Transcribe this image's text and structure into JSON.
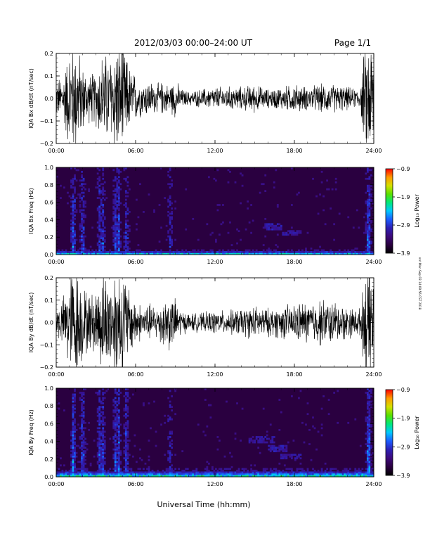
{
  "header": {
    "title": "2012/03/03  00:00–24:00 UT",
    "page": "Page 1/1"
  },
  "footer": {
    "xlabel": "Universal Time (hh:mm)",
    "stamp": "mrl Mon Sep 03 14:09:56 CST 2018"
  },
  "colors": {
    "background": "#ffffff",
    "trace": "#000000",
    "colormap": [
      "#000000",
      "#2a0040",
      "#3d0a7a",
      "#2d1fb4",
      "#1b5cff",
      "#00c8ff",
      "#00e87a",
      "#59e000",
      "#d4e000",
      "#ff9a00",
      "#ff0000"
    ]
  },
  "chart_data": [
    {
      "type": "line",
      "ylabel": "IQA Bx dB/dt (nT/sec)",
      "xlim": [
        0,
        24
      ],
      "ylim": [
        -0.2,
        0.2
      ],
      "yticks": [
        "0.2",
        "0.1",
        "0.0",
        "−0.1",
        "−0.2"
      ],
      "xticks": [
        "00:00",
        "06:00",
        "12:00",
        "18:00",
        "24:00"
      ],
      "series": [
        {
          "envelope_time_h": [
            0,
            0.5,
            1,
            1.5,
            2,
            2.5,
            3,
            3.5,
            4,
            4.5,
            5,
            5.5,
            6,
            6.5,
            7,
            7.5,
            8,
            8.5,
            9,
            9.5,
            10,
            11,
            12,
            13,
            14,
            15,
            16,
            17,
            18,
            19,
            20,
            21,
            22,
            22.5,
            23,
            23.3,
            23.6,
            24
          ],
          "envelope_amplitude": [
            0.08,
            0.1,
            0.22,
            0.25,
            0.14,
            0.1,
            0.12,
            0.2,
            0.18,
            0.25,
            0.25,
            0.14,
            0.1,
            0.07,
            0.08,
            0.06,
            0.07,
            0.06,
            0.08,
            0.04,
            0.03,
            0.04,
            0.05,
            0.05,
            0.05,
            0.06,
            0.04,
            0.05,
            0.06,
            0.05,
            0.06,
            0.06,
            0.05,
            0.04,
            0.05,
            0.22,
            0.25,
            0.25
          ]
        }
      ]
    },
    {
      "type": "heatmap",
      "ylabel": "IQA Bx Freq (Hz)",
      "xlim": [
        0,
        24
      ],
      "ylim": [
        0,
        1.0
      ],
      "yticks": [
        "1.0",
        "0.8",
        "0.6",
        "0.4",
        "0.2",
        "0.0"
      ],
      "xticks": [
        "00:00",
        "06:00",
        "12:00",
        "18:00",
        "24:00"
      ],
      "colorbar": {
        "label": "Log₁₀ Power",
        "ticks": [
          "−0.9",
          "−1.9",
          "−2.9",
          "−3.9"
        ],
        "range": [
          -3.9,
          -0.9
        ]
      },
      "background_level": -3.5,
      "columns": [
        {
          "time_h": 1.3,
          "level": -2.5
        },
        {
          "time_h": 2.0,
          "level": -2.6
        },
        {
          "time_h": 3.3,
          "level": -2.7
        },
        {
          "time_h": 3.5,
          "level": -2.7
        },
        {
          "time_h": 4.5,
          "level": -2.6
        },
        {
          "time_h": 4.7,
          "level": -2.6
        },
        {
          "time_h": 5.3,
          "level": -2.8
        },
        {
          "time_h": 8.6,
          "level": -3.0
        },
        {
          "time_h": 23.6,
          "level": -2.4
        }
      ],
      "features": [
        {
          "time_range_h": [
            15.8,
            17.0
          ],
          "freq_range_hz": [
            0.28,
            0.36
          ],
          "level": -2.8
        },
        {
          "time_range_h": [
            17.0,
            18.5
          ],
          "freq_range_hz": [
            0.22,
            0.28
          ],
          "level": -2.9
        },
        {
          "time_range_h": [
            0.0,
            24.0
          ],
          "freq_range_hz": [
            0.0,
            0.06
          ],
          "level": -2.0
        }
      ]
    },
    {
      "type": "line",
      "ylabel": "IQA By dB/dt (nT/sec)",
      "xlim": [
        0,
        24
      ],
      "ylim": [
        -0.2,
        0.2
      ],
      "yticks": [
        "0.2",
        "0.1",
        "0.0",
        "−0.1",
        "−0.2"
      ],
      "xticks": [
        "00:00",
        "06:00",
        "12:00",
        "18:00",
        "24:00"
      ],
      "series": [
        {
          "envelope_time_h": [
            0,
            0.5,
            1,
            1.5,
            2,
            2.5,
            3,
            3.5,
            4,
            4.5,
            5,
            5.5,
            6,
            6.5,
            7,
            7.5,
            8,
            8.5,
            9,
            9.5,
            10,
            11,
            12,
            13,
            14,
            15,
            16,
            17,
            18,
            19,
            20,
            21,
            22,
            22.5,
            23,
            23.3,
            23.6,
            24
          ],
          "envelope_amplitude": [
            0.07,
            0.1,
            0.22,
            0.25,
            0.16,
            0.12,
            0.14,
            0.22,
            0.2,
            0.25,
            0.25,
            0.15,
            0.1,
            0.07,
            0.08,
            0.07,
            0.1,
            0.12,
            0.1,
            0.05,
            0.04,
            0.04,
            0.05,
            0.05,
            0.06,
            0.07,
            0.06,
            0.07,
            0.08,
            0.09,
            0.1,
            0.09,
            0.07,
            0.06,
            0.06,
            0.2,
            0.25,
            0.25
          ]
        }
      ]
    },
    {
      "type": "heatmap",
      "ylabel": "IQA By Freq (Hz)",
      "xlim": [
        0,
        24
      ],
      "ylim": [
        0,
        1.0
      ],
      "yticks": [
        "1.0",
        "0.8",
        "0.6",
        "0.4",
        "0.2",
        "0.0"
      ],
      "xticks": [
        "00:00",
        "06:00",
        "12:00",
        "18:00",
        "24:00"
      ],
      "colorbar": {
        "label": "Log₁₀ Power",
        "ticks": [
          "−0.9",
          "−1.9",
          "−2.9",
          "−3.9"
        ],
        "range": [
          -3.9,
          -0.9
        ]
      },
      "background_level": -3.5,
      "columns": [
        {
          "time_h": 1.3,
          "level": -2.4
        },
        {
          "time_h": 2.0,
          "level": -2.5
        },
        {
          "time_h": 3.3,
          "level": -2.6
        },
        {
          "time_h": 3.5,
          "level": -2.6
        },
        {
          "time_h": 4.5,
          "level": -2.5
        },
        {
          "time_h": 4.7,
          "level": -2.5
        },
        {
          "time_h": 5.3,
          "level": -2.7
        },
        {
          "time_h": 8.6,
          "level": -2.9
        },
        {
          "time_h": 23.6,
          "level": -2.3
        }
      ],
      "features": [
        {
          "time_range_h": [
            14.5,
            16.5
          ],
          "freq_range_hz": [
            0.38,
            0.46
          ],
          "level": -2.9
        },
        {
          "time_range_h": [
            16.0,
            17.5
          ],
          "freq_range_hz": [
            0.28,
            0.36
          ],
          "level": -2.8
        },
        {
          "time_range_h": [
            17.0,
            18.5
          ],
          "freq_range_hz": [
            0.2,
            0.26
          ],
          "level": -2.9
        },
        {
          "time_range_h": [
            0.0,
            24.0
          ],
          "freq_range_hz": [
            0.0,
            0.1
          ],
          "level": -1.9
        }
      ]
    }
  ]
}
